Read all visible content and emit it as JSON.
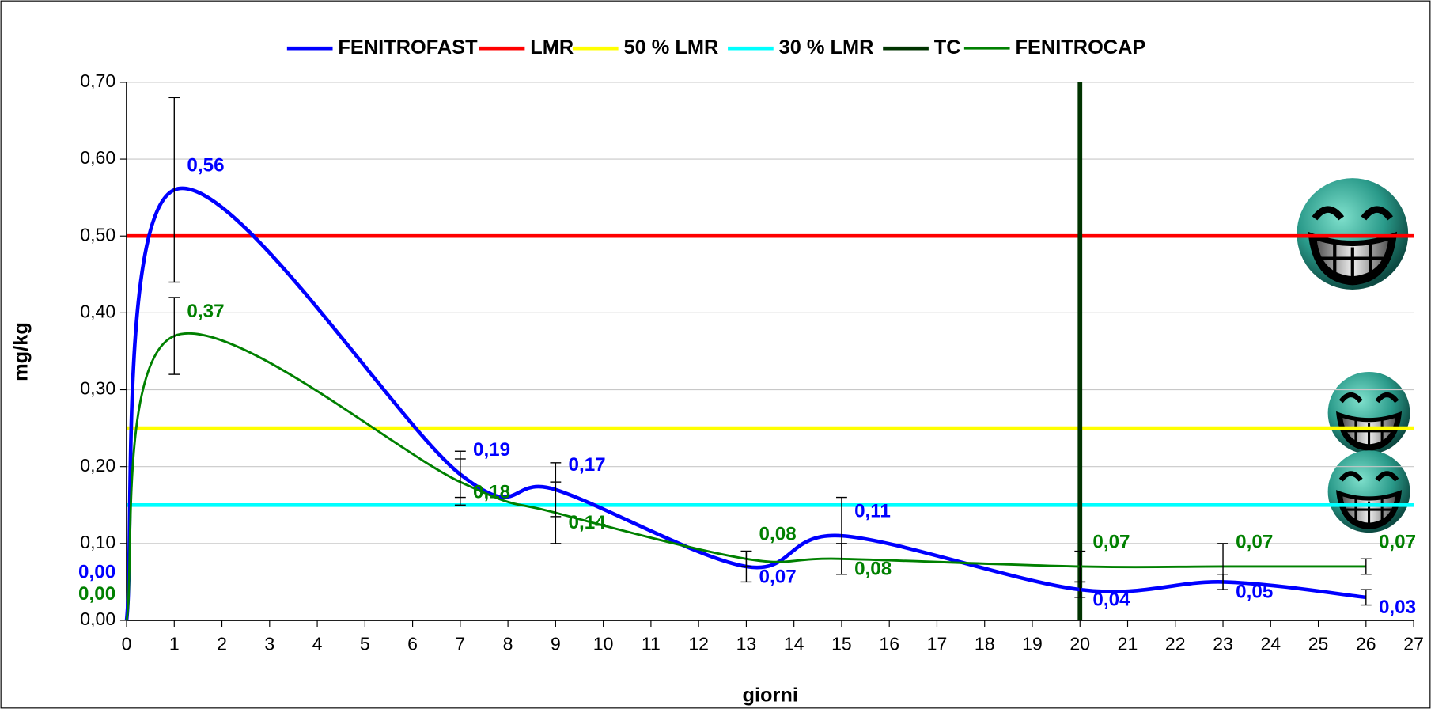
{
  "chart_data": {
    "type": "line",
    "x_label": "giorni",
    "y_label": "mg/kg",
    "xlim": [
      0,
      27
    ],
    "xticks": [
      0,
      1,
      2,
      3,
      4,
      5,
      6,
      7,
      8,
      9,
      10,
      11,
      12,
      13,
      14,
      15,
      16,
      17,
      18,
      19,
      20,
      21,
      22,
      23,
      24,
      25,
      26,
      27
    ],
    "ylim": [
      0,
      0.7
    ],
    "yticks": [
      {
        "value": 0,
        "label": "0,00"
      },
      {
        "value": 0.1,
        "label": "0,10"
      },
      {
        "value": 0.2,
        "label": "0,20"
      },
      {
        "value": 0.3,
        "label": "0,30"
      },
      {
        "value": 0.4,
        "label": "0,40"
      },
      {
        "value": 0.5,
        "label": "0,50"
      },
      {
        "value": 0.6,
        "label": "0,60"
      },
      {
        "value": 0.7,
        "label": "0,70"
      }
    ],
    "grid": true,
    "legend": "top",
    "x": [
      0,
      1,
      7,
      9,
      13,
      15,
      20,
      23,
      26
    ],
    "series": [
      {
        "name": "FENITROFAST",
        "color": "#0000ff",
        "values": [
          0.0,
          0.56,
          0.19,
          0.17,
          0.07,
          0.11,
          0.04,
          0.05,
          0.03
        ],
        "value_labels": [
          "0,00",
          "0,56",
          "0,19",
          "0,17",
          "0,07",
          "0,11",
          "0,04",
          "0,05",
          "0,03"
        ],
        "errors": [
          0,
          0.12,
          0.03,
          0.035,
          0.02,
          0.05,
          0.01,
          0.01,
          0.01
        ]
      },
      {
        "name": "LMR",
        "color": "#ff0000",
        "y": 0.5
      },
      {
        "name": "50 % LMR",
        "color": "#ffff00",
        "y": 0.25
      },
      {
        "name": "30 % LMR",
        "color": "#00ffff",
        "y": 0.15
      },
      {
        "name": "TC",
        "color": "#003300",
        "x": 20
      },
      {
        "name": "FENITROCAP",
        "color": "#008000",
        "values": [
          0.0,
          0.37,
          0.18,
          0.14,
          0.08,
          0.08,
          0.07,
          0.07,
          0.07
        ],
        "value_labels": [
          "0,00",
          "0,37",
          "0,18",
          "0,14",
          "0,08",
          "0,08",
          "0,07",
          "0,07",
          "0,07"
        ],
        "errors": [
          0,
          0.05,
          0.03,
          0.04,
          0.01,
          0.02,
          0.02,
          0.03,
          0.01
        ]
      }
    ]
  }
}
